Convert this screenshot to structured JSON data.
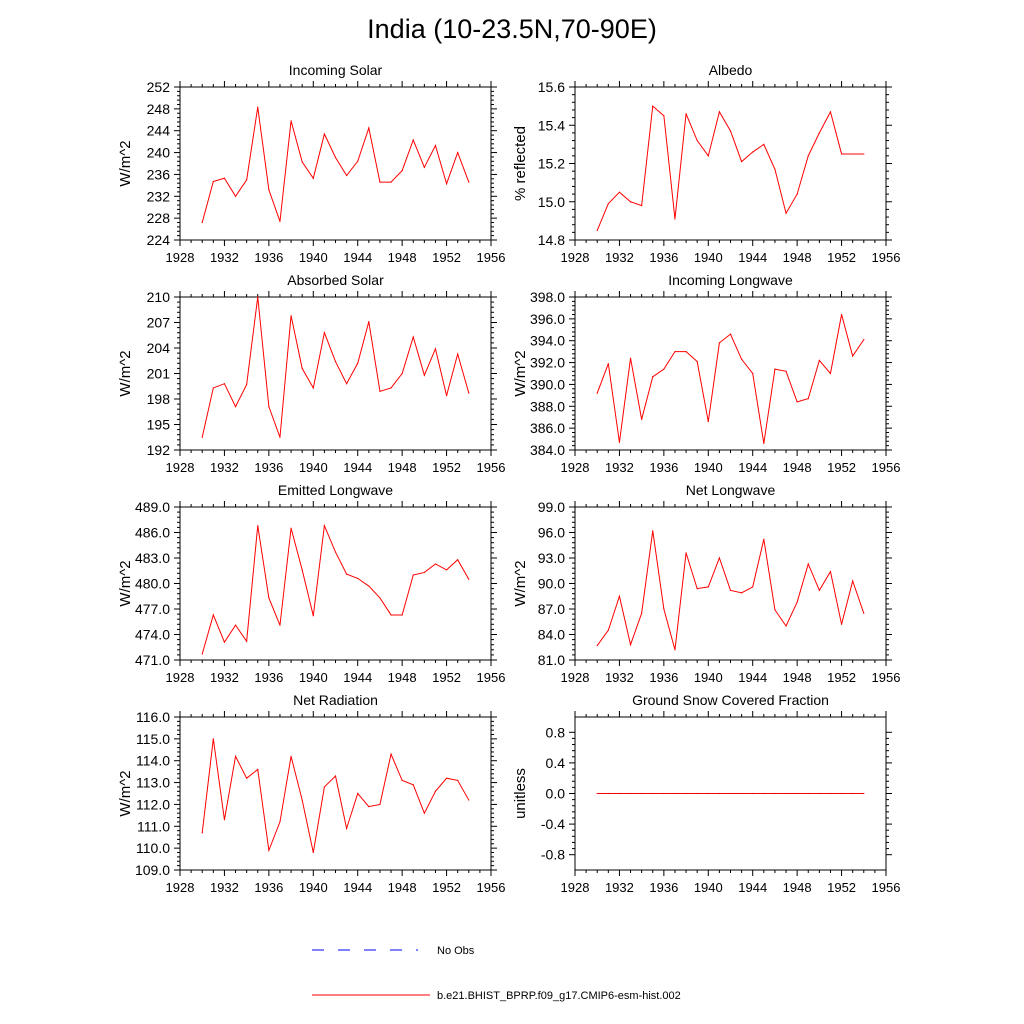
{
  "title": "India (10-23.5N,70-90E)",
  "colors": {
    "model": "#ff0000",
    "obs": "#0000ff",
    "axis": "#000000"
  },
  "legend": {
    "obs_label": "No Obs",
    "model_label": "b.e21.BHIST_BPRP.f09_g17.CMIP6-esm-hist.002"
  },
  "chart_data": [
    {
      "type": "line",
      "title": "Incoming Solar",
      "ylabel": "W/m^2",
      "xlim": [
        1928,
        1956
      ],
      "xticks": [
        "1928",
        "1932",
        "1936",
        "1940",
        "1944",
        "1948",
        "1952",
        "1956"
      ],
      "ylim": [
        224,
        252
      ],
      "yticks": [
        "224",
        "228",
        "232",
        "236",
        "240",
        "244",
        "248",
        "252"
      ],
      "x": [
        1930,
        1931,
        1932,
        1933,
        1934,
        1935,
        1936,
        1937,
        1938,
        1939,
        1940,
        1941,
        1942,
        1943,
        1944,
        1945,
        1946,
        1947,
        1948,
        1949,
        1950,
        1951,
        1952,
        1953,
        1954
      ],
      "series": [
        {
          "name": "b.e21.BHIST_BPRP.f09_g17.CMIP6-esm-hist.002",
          "values": [
            227.2,
            234.7,
            235.3,
            232.0,
            235.0,
            248.3,
            233.2,
            227.4,
            245.8,
            238.3,
            235.3,
            243.4,
            239.1,
            235.8,
            238.4,
            244.5,
            234.6,
            234.6,
            236.7,
            242.3,
            237.3,
            241.3,
            234.3,
            240.0,
            234.6
          ]
        }
      ]
    },
    {
      "type": "line",
      "title": "Albedo",
      "ylabel": "% reflected",
      "xlim": [
        1928,
        1956
      ],
      "xticks": [
        "1928",
        "1932",
        "1936",
        "1940",
        "1944",
        "1948",
        "1952",
        "1956"
      ],
      "ylim": [
        14.8,
        15.6
      ],
      "yticks": [
        "14.8",
        "15.0",
        "15.2",
        "15.4",
        "15.6"
      ],
      "x": [
        1930,
        1931,
        1932,
        1933,
        1934,
        1935,
        1936,
        1937,
        1938,
        1939,
        1940,
        1941,
        1942,
        1943,
        1944,
        1945,
        1946,
        1947,
        1948,
        1949,
        1950,
        1951,
        1952,
        1953,
        1954
      ],
      "series": [
        {
          "name": "b.e21.BHIST_BPRP.f09_g17.CMIP6-esm-hist.002",
          "values": [
            14.85,
            14.99,
            15.05,
            15.0,
            14.98,
            15.5,
            15.45,
            14.91,
            15.46,
            15.32,
            15.24,
            15.47,
            15.37,
            15.21,
            15.26,
            15.3,
            15.17,
            14.94,
            15.04,
            15.24,
            15.36,
            15.47,
            15.25,
            15.25,
            15.25
          ]
        }
      ]
    },
    {
      "type": "line",
      "title": "Absorbed Solar",
      "ylabel": "W/m^2",
      "xlim": [
        1928,
        1956
      ],
      "xticks": [
        "1928",
        "1932",
        "1936",
        "1940",
        "1944",
        "1948",
        "1952",
        "1956"
      ],
      "ylim": [
        192,
        210
      ],
      "yticks": [
        "192",
        "195",
        "198",
        "201",
        "204",
        "207",
        "210"
      ],
      "x": [
        1930,
        1931,
        1932,
        1933,
        1934,
        1935,
        1936,
        1937,
        1938,
        1939,
        1940,
        1941,
        1942,
        1943,
        1944,
        1945,
        1946,
        1947,
        1948,
        1949,
        1950,
        1951,
        1952,
        1953,
        1954
      ],
      "series": [
        {
          "name": "b.e21.BHIST_BPRP.f09_g17.CMIP6-esm-hist.002",
          "values": [
            193.5,
            199.3,
            199.8,
            197.1,
            199.7,
            210.0,
            197.1,
            193.5,
            207.8,
            201.6,
            199.3,
            205.8,
            202.4,
            199.8,
            202.2,
            207.1,
            198.9,
            199.3,
            201.0,
            205.3,
            200.8,
            203.9,
            198.4,
            203.3,
            198.7
          ]
        }
      ]
    },
    {
      "type": "line",
      "title": "Incoming Longwave",
      "ylabel": "W/m^2",
      "xlim": [
        1928,
        1956
      ],
      "xticks": [
        "1928",
        "1932",
        "1936",
        "1940",
        "1944",
        "1948",
        "1952",
        "1956"
      ],
      "ylim": [
        384.0,
        398.0
      ],
      "yticks": [
        "384.0",
        "386.0",
        "388.0",
        "390.0",
        "392.0",
        "394.0",
        "396.0",
        "398.0"
      ],
      "x": [
        1930,
        1931,
        1932,
        1933,
        1934,
        1935,
        1936,
        1937,
        1938,
        1939,
        1940,
        1941,
        1942,
        1943,
        1944,
        1945,
        1946,
        1947,
        1948,
        1949,
        1950,
        1951,
        1952,
        1953,
        1954
      ],
      "series": [
        {
          "name": "b.e21.BHIST_BPRP.f09_g17.CMIP6-esm-hist.002",
          "values": [
            389.2,
            391.9,
            384.7,
            392.4,
            386.8,
            390.7,
            391.4,
            393.0,
            393.0,
            392.1,
            386.6,
            393.8,
            394.6,
            392.3,
            391.0,
            384.6,
            391.4,
            391.2,
            388.4,
            388.7,
            392.2,
            391.0,
            396.4,
            392.6,
            394.1
          ]
        }
      ]
    },
    {
      "type": "line",
      "title": "Emitted Longwave",
      "ylabel": "W/m^2",
      "xlim": [
        1928,
        1956
      ],
      "xticks": [
        "1928",
        "1932",
        "1936",
        "1940",
        "1944",
        "1948",
        "1952",
        "1956"
      ],
      "ylim": [
        471.0,
        489.0
      ],
      "yticks": [
        "471.0",
        "474.0",
        "477.0",
        "480.0",
        "483.0",
        "486.0",
        "489.0"
      ],
      "x": [
        1930,
        1931,
        1932,
        1933,
        1934,
        1935,
        1936,
        1937,
        1938,
        1939,
        1940,
        1941,
        1942,
        1943,
        1944,
        1945,
        1946,
        1947,
        1948,
        1949,
        1950,
        1951,
        1952,
        1953,
        1954
      ],
      "series": [
        {
          "name": "b.e21.BHIST_BPRP.f09_g17.CMIP6-esm-hist.002",
          "values": [
            471.7,
            476.3,
            473.1,
            475.1,
            473.2,
            486.8,
            478.3,
            475.1,
            486.5,
            481.6,
            476.2,
            486.8,
            483.7,
            481.1,
            480.6,
            479.7,
            478.3,
            476.3,
            476.3,
            481.0,
            481.3,
            482.3,
            481.6,
            482.8,
            480.5
          ]
        }
      ]
    },
    {
      "type": "line",
      "title": "Net Longwave",
      "ylabel": "W/m^2",
      "xlim": [
        1928,
        1956
      ],
      "xticks": [
        "1928",
        "1932",
        "1936",
        "1940",
        "1944",
        "1948",
        "1952",
        "1956"
      ],
      "ylim": [
        81.0,
        99.0
      ],
      "yticks": [
        "81.0",
        "84.0",
        "87.0",
        "90.0",
        "93.0",
        "96.0",
        "99.0"
      ],
      "x": [
        1930,
        1931,
        1932,
        1933,
        1934,
        1935,
        1936,
        1937,
        1938,
        1939,
        1940,
        1941,
        1942,
        1943,
        1944,
        1945,
        1946,
        1947,
        1948,
        1949,
        1950,
        1951,
        1952,
        1953,
        1954
      ],
      "series": [
        {
          "name": "b.e21.BHIST_BPRP.f09_g17.CMIP6-esm-hist.002",
          "values": [
            82.7,
            84.5,
            88.5,
            82.8,
            86.5,
            96.2,
            87.0,
            82.2,
            93.6,
            89.4,
            89.6,
            93.0,
            89.2,
            88.9,
            89.6,
            95.2,
            86.9,
            85.0,
            87.8,
            92.3,
            89.2,
            91.4,
            85.2,
            90.3,
            86.5
          ]
        }
      ]
    },
    {
      "type": "line",
      "title": "Net Radiation",
      "ylabel": "W/m^2",
      "xlim": [
        1928,
        1956
      ],
      "xticks": [
        "1928",
        "1932",
        "1936",
        "1940",
        "1944",
        "1948",
        "1952",
        "1956"
      ],
      "ylim": [
        109.0,
        116.0
      ],
      "yticks": [
        "109.0",
        "110.0",
        "111.0",
        "112.0",
        "113.0",
        "114.0",
        "115.0",
        "116.0"
      ],
      "x": [
        1930,
        1931,
        1932,
        1933,
        1934,
        1935,
        1936,
        1937,
        1938,
        1939,
        1940,
        1941,
        1942,
        1943,
        1944,
        1945,
        1946,
        1947,
        1948,
        1949,
        1950,
        1951,
        1952,
        1953,
        1954
      ],
      "series": [
        {
          "name": "b.e21.BHIST_BPRP.f09_g17.CMIP6-esm-hist.002",
          "values": [
            110.7,
            115.0,
            111.3,
            114.2,
            113.2,
            113.6,
            109.9,
            111.2,
            114.2,
            112.2,
            109.8,
            112.8,
            113.3,
            110.9,
            112.5,
            111.9,
            112.0,
            114.3,
            113.1,
            112.9,
            111.6,
            112.6,
            113.2,
            113.1,
            112.2
          ]
        }
      ]
    },
    {
      "type": "line",
      "title": "Ground Snow Covered Fraction",
      "ylabel": "unitless",
      "xlim": [
        1928,
        1956
      ],
      "xticks": [
        "1928",
        "1932",
        "1936",
        "1940",
        "1944",
        "1948",
        "1952",
        "1956"
      ],
      "ylim": [
        -1.0,
        1.0
      ],
      "yticks": [
        "-0.8",
        "-0.4",
        "0.0",
        "0.4",
        "0.8"
      ],
      "ytick_values": [
        -0.8,
        -0.4,
        0.0,
        0.4,
        0.8
      ],
      "x": [
        1930,
        1931,
        1932,
        1933,
        1934,
        1935,
        1936,
        1937,
        1938,
        1939,
        1940,
        1941,
        1942,
        1943,
        1944,
        1945,
        1946,
        1947,
        1948,
        1949,
        1950,
        1951,
        1952,
        1953,
        1954
      ],
      "series": [
        {
          "name": "b.e21.BHIST_BPRP.f09_g17.CMIP6-esm-hist.002",
          "values": [
            0,
            0,
            0,
            0,
            0,
            0,
            0,
            0,
            0,
            0,
            0,
            0,
            0,
            0,
            0,
            0,
            0,
            0,
            0,
            0,
            0,
            0,
            0,
            0,
            0
          ]
        }
      ]
    }
  ]
}
